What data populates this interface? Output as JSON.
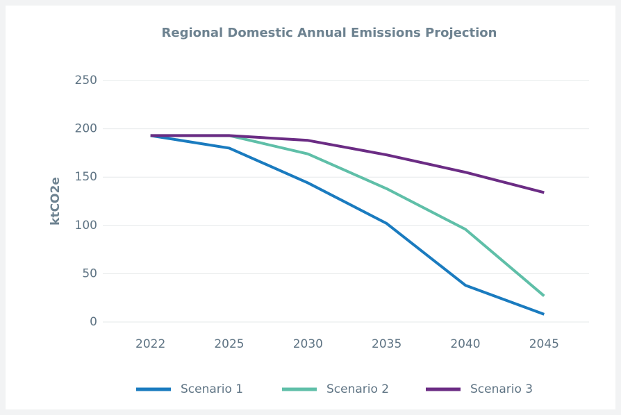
{
  "chart_data": {
    "type": "line",
    "title": "Regional Domestic Annual Emissions Projection",
    "y_label": "ktCO2e",
    "categories": [
      "2022",
      "2025",
      "2030",
      "2035",
      "2040",
      "2045"
    ],
    "series": [
      {
        "name": "Scenario 1",
        "color": "#1a7bbf",
        "values": [
          193,
          180,
          144,
          102,
          38,
          8
        ]
      },
      {
        "name": "Scenario 2",
        "color": "#5fbfa8",
        "values": [
          193,
          193,
          174,
          138,
          96,
          27
        ]
      },
      {
        "name": "Scenario 3",
        "color": "#6b2c84",
        "values": [
          193,
          193,
          188,
          173,
          155,
          134
        ]
      }
    ],
    "ylim": [
      0,
      250
    ],
    "yticks": [
      0,
      50,
      100,
      150,
      200,
      250
    ],
    "grid": true,
    "legend": "bottom"
  }
}
